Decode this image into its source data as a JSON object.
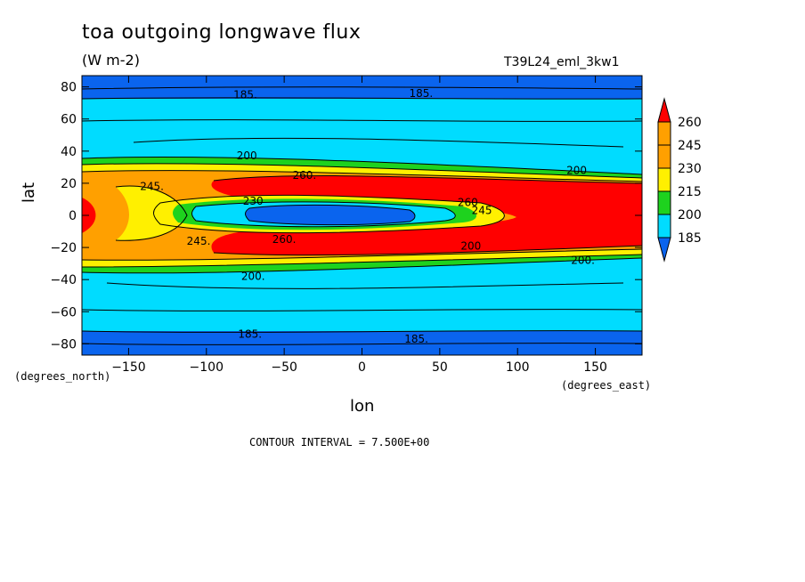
{
  "chart_data": {
    "type": "heatmap",
    "title": "toa outgoing longwave flux",
    "subtitle": "(W m-2)",
    "run_id": "T39L24_eml_3kw1",
    "xlabel": "lon",
    "ylabel": "lat",
    "x_units": "(degrees_east)",
    "y_units": "(degrees_north)",
    "xlim": [
      -180,
      180
    ],
    "ylim": [
      -87,
      87
    ],
    "x_ticks": [
      -150,
      -100,
      -50,
      0,
      50,
      100,
      150
    ],
    "y_ticks": [
      80,
      60,
      40,
      20,
      0,
      -20,
      -40,
      -60,
      -80
    ],
    "colorbar": {
      "levels": [
        185,
        200,
        215,
        230,
        245,
        260
      ],
      "colors": [
        "#0a64ee",
        "#00dcff",
        "#1ed21e",
        "#fff000",
        "#ffa000",
        "#ff0000"
      ],
      "extend": "both"
    },
    "contour_interval_text": "CONTOUR INTERVAL = 7.500E+00",
    "contour_labels": [
      {
        "text": "185.",
        "lon": -75,
        "lat": 75
      },
      {
        "text": "185.",
        "lon": 38,
        "lat": 76
      },
      {
        "text": "200",
        "lon": -74,
        "lat": 37
      },
      {
        "text": "245.",
        "lon": -135,
        "lat": 18
      },
      {
        "text": "260.",
        "lon": -37,
        "lat": 25
      },
      {
        "text": "230",
        "lon": -70,
        "lat": 9
      },
      {
        "text": "260",
        "lon": 68,
        "lat": 8
      },
      {
        "text": "245",
        "lon": 77,
        "lat": 3
      },
      {
        "text": "200",
        "lon": 138,
        "lat": 28
      },
      {
        "text": "245.",
        "lon": -105,
        "lat": -16
      },
      {
        "text": "260.",
        "lon": -50,
        "lat": -15
      },
      {
        "text": "200",
        "lon": 70,
        "lat": -19
      },
      {
        "text": "200.",
        "lon": 142,
        "lat": -28
      },
      {
        "text": "200.",
        "lon": -70,
        "lat": -38
      },
      {
        "text": "185.",
        "lon": -72,
        "lat": -74
      },
      {
        "text": "185.",
        "lon": 35,
        "lat": -77
      }
    ]
  }
}
